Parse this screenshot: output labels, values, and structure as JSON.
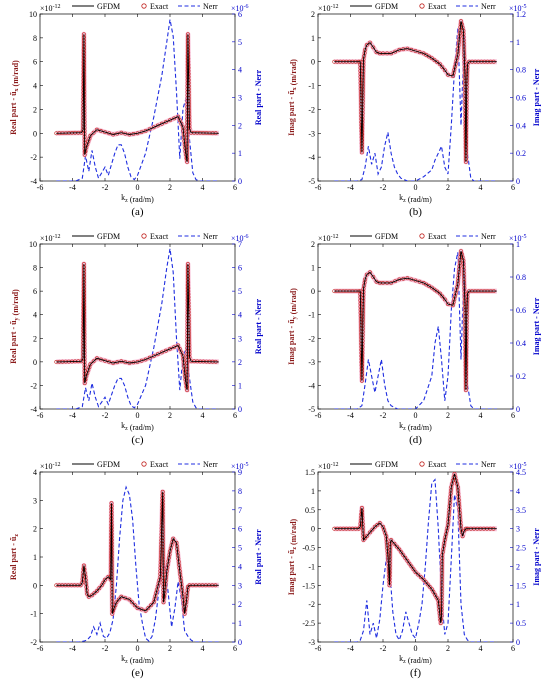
{
  "legend": {
    "gfdm": "GFDM",
    "exact": "Exact",
    "nerr": "Nerr"
  },
  "chart_data": [
    {
      "type": "line",
      "caption": "(a)",
      "xlabel": "k_z (rad/m)",
      "ylabel": "Real part - ũ_x (m/rad)",
      "y2label": "Real part - Nerr",
      "xlim": [
        -6,
        6
      ],
      "ylim": [
        -4,
        10
      ],
      "y2lim": [
        0,
        6
      ],
      "y_exponent": "×10^-12",
      "y2_exponent": "×10^-6",
      "x_ticks": [
        "-6",
        "-4",
        "-2",
        "0",
        "2",
        "4",
        "6"
      ],
      "y_ticks": [
        "-4",
        "-2",
        "0",
        "2",
        "4",
        "6",
        "8",
        "10"
      ],
      "y2_ticks": [
        "0",
        "1",
        "2",
        "3",
        "4",
        "5",
        "6"
      ],
      "field": {
        "x": [
          -5,
          -3.45,
          -3.35,
          -3.3,
          -3.25,
          -3.15,
          -2.9,
          -2.5,
          -2,
          -1.5,
          -1,
          -0.5,
          0,
          0.5,
          1,
          1.5,
          2,
          2.5,
          2.8,
          2.95,
          3.05,
          3.1,
          3.2,
          3.3,
          5
        ],
        "y": [
          0,
          0.05,
          0.3,
          8.3,
          -1.8,
          -1.2,
          -0.2,
          0.3,
          0.1,
          -0.1,
          0.05,
          -0.1,
          0,
          0.2,
          0.5,
          0.8,
          1.1,
          1.4,
          0.5,
          -1.5,
          -2.4,
          8.3,
          0.4,
          0.05,
          0
        ]
      },
      "nerr": {
        "x": [
          -5,
          -3.8,
          -3.4,
          -3.2,
          -3,
          -2.8,
          -2.6,
          -2.4,
          -2.2,
          -2,
          -1.8,
          -1.6,
          -1.4,
          -1.2,
          -1,
          -0.8,
          -0.6,
          -0.4,
          -0.2,
          0,
          0.5,
          1,
          1.5,
          1.8,
          2,
          2.2,
          2.4,
          2.6,
          2.8,
          3,
          3.2,
          3.4,
          3.6,
          3.8,
          4,
          5
        ],
        "y": [
          0,
          0,
          0.1,
          0.9,
          0.35,
          1.1,
          0.5,
          0.1,
          0.3,
          0.5,
          0.2,
          0.6,
          1.0,
          1.3,
          1.3,
          1.0,
          0.5,
          0.15,
          0.05,
          0.2,
          1.0,
          2.3,
          3.8,
          5.0,
          5.8,
          5.2,
          3.2,
          0.8,
          2.6,
          3.0,
          1.5,
          0.3,
          0.05,
          0,
          0,
          0
        ]
      }
    },
    {
      "type": "line",
      "caption": "(b)",
      "xlabel": "k_z (rad/m)",
      "ylabel": "Imag part - ũ_x (m/rad)",
      "y2label": "Imag part - Nerr",
      "xlim": [
        -6,
        6
      ],
      "ylim": [
        -5,
        2
      ],
      "y2lim": [
        0,
        1.2
      ],
      "y_exponent": "×10^-12",
      "y2_exponent": "×10^-5",
      "x_ticks": [
        "-6",
        "-4",
        "-2",
        "0",
        "2",
        "4",
        "6"
      ],
      "y_ticks": [
        "-5",
        "-4",
        "-3",
        "-2",
        "-1",
        "0",
        "1",
        "2"
      ],
      "y2_ticks": [
        "0",
        "0.2",
        "0.4",
        "0.6",
        "0.8",
        "1",
        "1.2"
      ],
      "field": {
        "x": [
          -5,
          -3.5,
          -3.4,
          -3.3,
          -3.2,
          -3.1,
          -3,
          -2.8,
          -2.6,
          -2.4,
          -2.2,
          -2,
          -1.5,
          -1,
          -0.5,
          0,
          0.5,
          1,
          1.5,
          1.8,
          2,
          2.3,
          2.6,
          2.8,
          2.95,
          3.05,
          3.1,
          3.15,
          3.2,
          3.3,
          5
        ],
        "y": [
          0,
          0,
          0,
          -3.8,
          0.1,
          0.5,
          0.7,
          0.8,
          0.6,
          0.4,
          0.35,
          0.35,
          0.35,
          0.5,
          0.55,
          0.45,
          0.35,
          0.15,
          -0.1,
          -0.35,
          -0.55,
          -0.6,
          0.3,
          1.7,
          1.3,
          -0.8,
          -4.2,
          -1.2,
          -0.1,
          0,
          0
        ]
      },
      "nerr": {
        "x": [
          -5,
          -3.6,
          -3.3,
          -3.1,
          -2.9,
          -2.7,
          -2.5,
          -2.3,
          -2.1,
          -1.9,
          -1.7,
          -1.5,
          -1.3,
          -1.1,
          -0.9,
          -0.7,
          -0.5,
          0,
          0.5,
          1,
          1.2,
          1.4,
          1.6,
          1.8,
          2,
          2.2,
          2.4,
          2.6,
          2.8,
          3,
          3.2,
          3.4,
          3.6,
          5
        ],
        "y": [
          0,
          0,
          0.01,
          0.1,
          0.25,
          0.12,
          0.2,
          0.05,
          0.1,
          0.25,
          0.35,
          0.2,
          0.1,
          0.05,
          0.02,
          0.01,
          0,
          0,
          0.03,
          0.08,
          0.15,
          0.2,
          0.25,
          0.1,
          0.05,
          0.4,
          0.8,
          1.1,
          0.4,
          1.05,
          0.2,
          0.02,
          0,
          0
        ]
      }
    },
    {
      "type": "line",
      "caption": "(c)",
      "xlabel": "k_z (rad/m)",
      "ylabel": "Real part - ũ_y (m/rad)",
      "y2label": "Real part - Nerr",
      "xlim": [
        -6,
        6
      ],
      "ylim": [
        -4,
        10
      ],
      "y2lim": [
        0,
        7
      ],
      "y_exponent": "×10^-12",
      "y2_exponent": "×10^-6",
      "x_ticks": [
        "-6",
        "-4",
        "-2",
        "0",
        "2",
        "4",
        "6"
      ],
      "y_ticks": [
        "-4",
        "-2",
        "0",
        "2",
        "4",
        "6",
        "8",
        "10"
      ],
      "y2_ticks": [
        "0",
        "1",
        "2",
        "3",
        "4",
        "5",
        "6",
        "7"
      ],
      "field": {
        "x": [
          -5,
          -3.45,
          -3.35,
          -3.3,
          -3.25,
          -3.15,
          -2.9,
          -2.5,
          -2,
          -1.5,
          -1,
          -0.5,
          0,
          0.5,
          1,
          1.5,
          2,
          2.5,
          2.8,
          2.95,
          3.05,
          3.1,
          3.2,
          3.3,
          5
        ],
        "y": [
          0,
          0.05,
          0.3,
          8.3,
          -1.8,
          -1.2,
          -0.2,
          0.3,
          0.1,
          -0.1,
          0.05,
          -0.1,
          0,
          0.2,
          0.5,
          0.8,
          1.1,
          1.4,
          0.5,
          -1.5,
          -2.4,
          8.3,
          0.4,
          0.05,
          0
        ]
      },
      "nerr": {
        "x": [
          -5,
          -3.8,
          -3.4,
          -3.2,
          -3,
          -2.8,
          -2.6,
          -2.4,
          -2.2,
          -2,
          -1.8,
          -1.6,
          -1.4,
          -1.2,
          -1,
          -0.8,
          -0.6,
          -0.4,
          -0.2,
          0,
          0.5,
          1,
          1.5,
          1.8,
          2,
          2.2,
          2.4,
          2.6,
          2.8,
          3,
          3.2,
          3.4,
          3.6,
          3.8,
          4,
          5
        ],
        "y": [
          0,
          0,
          0.1,
          0.9,
          0.35,
          1.1,
          0.5,
          0.1,
          0.3,
          0.5,
          0.2,
          0.6,
          1.0,
          1.3,
          1.3,
          1.0,
          0.5,
          0.15,
          0.05,
          0.2,
          1.0,
          2.6,
          4.5,
          6.0,
          6.8,
          5.8,
          3.0,
          0.8,
          2.2,
          2.6,
          1.3,
          0.3,
          0.05,
          0,
          0,
          0
        ]
      }
    },
    {
      "type": "line",
      "caption": "(d)",
      "xlabel": "k_z (rad/m)",
      "ylabel": "Imag part - ũ_y (m/rad)",
      "y2label": "Imag part - Nerr",
      "xlim": [
        -6,
        6
      ],
      "ylim": [
        -5,
        2
      ],
      "y2lim": [
        0,
        1
      ],
      "y_exponent": "×10^-12",
      "y2_exponent": "×10^-5",
      "x_ticks": [
        "-6",
        "-4",
        "-2",
        "0",
        "2",
        "4",
        "6"
      ],
      "y_ticks": [
        "-5",
        "-4",
        "-3",
        "-2",
        "-1",
        "0",
        "1",
        "2"
      ],
      "y2_ticks": [
        "0",
        "0.2",
        "0.4",
        "0.6",
        "0.8",
        "1"
      ],
      "field": {
        "x": [
          -5,
          -3.5,
          -3.4,
          -3.3,
          -3.2,
          -3.1,
          -3,
          -2.8,
          -2.6,
          -2.4,
          -2.2,
          -2,
          -1.5,
          -1,
          -0.5,
          0,
          0.5,
          1,
          1.5,
          1.8,
          2,
          2.3,
          2.6,
          2.8,
          2.95,
          3.05,
          3.1,
          3.15,
          3.2,
          3.3,
          5
        ],
        "y": [
          0,
          0,
          0,
          -3.8,
          0.1,
          0.5,
          0.7,
          0.8,
          0.6,
          0.4,
          0.35,
          0.35,
          0.35,
          0.5,
          0.55,
          0.45,
          0.35,
          0.15,
          -0.1,
          -0.35,
          -0.55,
          -0.6,
          0.3,
          1.7,
          1.3,
          -0.8,
          -4.2,
          -1.2,
          -0.1,
          0,
          0
        ]
      },
      "nerr": {
        "x": [
          -5,
          -3.6,
          -3.3,
          -3.1,
          -2.9,
          -2.7,
          -2.5,
          -2.3,
          -2.1,
          -1.9,
          -1.7,
          -1.5,
          -1.3,
          -1.1,
          -0.9,
          -0.7,
          -0.5,
          0,
          0.5,
          1,
          1.2,
          1.4,
          1.6,
          1.8,
          2,
          2.2,
          2.4,
          2.6,
          2.8,
          3,
          3.2,
          3.4,
          3.6,
          5
        ],
        "y": [
          0,
          0,
          0.02,
          0.15,
          0.3,
          0.2,
          0.1,
          0.2,
          0.3,
          0.15,
          0.05,
          0.02,
          0.01,
          0,
          0,
          0,
          0,
          0,
          0.05,
          0.2,
          0.4,
          0.5,
          0.3,
          0.05,
          0.2,
          0.6,
          0.85,
          0.95,
          0.3,
          0.9,
          0.15,
          0.02,
          0,
          0
        ]
      }
    },
    {
      "type": "line",
      "caption": "(e)",
      "xlabel": "k_z (rad/m)",
      "ylabel": "Real part - ũ_z",
      "y2label": "Real part - Nerr",
      "xlim": [
        -6,
        6
      ],
      "ylim": [
        -2,
        4
      ],
      "y2lim": [
        0,
        9
      ],
      "y_exponent": "×10^-12",
      "y2_exponent": "×10^-5",
      "x_ticks": [
        "-6",
        "-4",
        "-2",
        "0",
        "2",
        "4",
        "6"
      ],
      "y_ticks": [
        "-2",
        "-1",
        "0",
        "1",
        "2",
        "3",
        "4"
      ],
      "y2_ticks": [
        "0",
        "1",
        "2",
        "3",
        "4",
        "5",
        "6",
        "7",
        "8",
        "9"
      ],
      "field": {
        "x": [
          -5,
          -3.5,
          -3.4,
          -3.3,
          -3.2,
          -3.1,
          -3,
          -2.8,
          -2.5,
          -2.2,
          -2,
          -1.8,
          -1.65,
          -1.6,
          -1.55,
          -1.5,
          -1.3,
          -1,
          -0.5,
          0,
          0.5,
          1,
          1.4,
          1.55,
          1.6,
          1.65,
          1.8,
          2,
          2.2,
          2.4,
          2.6,
          2.8,
          2.9,
          3,
          3.1,
          3.2,
          5
        ],
        "y": [
          0,
          0,
          0.1,
          0.7,
          0.3,
          -0.3,
          -0.4,
          -0.35,
          -0.2,
          0,
          0.2,
          0.3,
          0.2,
          2.9,
          -1.0,
          -0.9,
          -0.6,
          -0.4,
          -0.5,
          -0.8,
          -0.9,
          -0.6,
          0.3,
          3.3,
          -0.6,
          -0.4,
          0.5,
          1.2,
          1.65,
          1.5,
          0.5,
          -0.4,
          -1.0,
          -0.6,
          -0.05,
          0,
          0
        ]
      },
      "nerr": {
        "x": [
          -5,
          -3.6,
          -3.3,
          -3.1,
          -2.9,
          -2.7,
          -2.5,
          -2.3,
          -2.1,
          -1.9,
          -1.7,
          -1.5,
          -1.3,
          -1.1,
          -0.9,
          -0.7,
          -0.5,
          -0.3,
          -0.1,
          0.1,
          0.3,
          0.5,
          0.7,
          0.9,
          1.1,
          1.3,
          1.5,
          1.7,
          1.9,
          2.1,
          2.3,
          2.5,
          2.7,
          2.9,
          3.1,
          3.3,
          3.5,
          5
        ],
        "y": [
          0,
          0,
          0.05,
          0.1,
          0.3,
          0.8,
          0.4,
          1.0,
          0.3,
          0.2,
          0.5,
          1.2,
          3.0,
          5.5,
          7.5,
          8.2,
          7.8,
          6.5,
          4.0,
          2.0,
          1.0,
          0.2,
          0.05,
          0.3,
          1.2,
          2.6,
          3.8,
          4.0,
          2.5,
          0.8,
          1.8,
          3.2,
          2.2,
          0.6,
          0.3,
          0.1,
          0,
          0
        ]
      }
    },
    {
      "type": "line",
      "caption": "(f)",
      "xlabel": "k_z (rad/m)",
      "ylabel": "Imag part - ũ_z (m/rad)",
      "y2label": "Imag part - Nerr",
      "xlim": [
        -6,
        6
      ],
      "ylim": [
        -3,
        1.5
      ],
      "y2lim": [
        0,
        4.5
      ],
      "y_exponent": "×10^-12",
      "y2_exponent": "×10^-5",
      "x_ticks": [
        "-6",
        "-4",
        "-2",
        "0",
        "2",
        "4",
        "6"
      ],
      "y_ticks": [
        "-3",
        "-2.5",
        "-2",
        "-1.5",
        "-1",
        "-0.5",
        "0",
        "0.5",
        "1",
        "1.5"
      ],
      "y2_ticks": [
        "0",
        "0.5",
        "1",
        "1.5",
        "2",
        "2.5",
        "3",
        "3.5",
        "4",
        "4.5"
      ],
      "field": {
        "x": [
          -5,
          -3.5,
          -3.4,
          -3.3,
          -3.2,
          -3.1,
          -3,
          -2.8,
          -2.5,
          -2.2,
          -2,
          -1.8,
          -1.65,
          -1.6,
          -1.55,
          -1.5,
          -1.3,
          -1,
          -0.5,
          0,
          0.5,
          1,
          1.4,
          1.55,
          1.6,
          1.65,
          1.8,
          2,
          2.2,
          2.4,
          2.6,
          2.8,
          2.9,
          3,
          3.1,
          3.2,
          5
        ],
        "y": [
          0,
          0,
          0.05,
          0.55,
          -0.3,
          -0.25,
          -0.2,
          -0.1,
          0.05,
          0.15,
          0.05,
          -0.2,
          -1.0,
          -1.5,
          -0.4,
          -0.3,
          -0.4,
          -0.55,
          -0.85,
          -1.15,
          -1.35,
          -1.6,
          -1.9,
          -2.5,
          -2.3,
          -0.7,
          -0.3,
          0.1,
          1.1,
          1.45,
          1.1,
          0,
          -0.2,
          -0.05,
          0,
          0,
          0
        ]
      },
      "nerr": {
        "x": [
          -5,
          -3.6,
          -3.4,
          -3.2,
          -3,
          -2.8,
          -2.6,
          -2.4,
          -2.2,
          -2,
          -1.8,
          -1.6,
          -1.4,
          -1.2,
          -1,
          -0.8,
          -0.6,
          -0.4,
          -0.2,
          0,
          0.2,
          0.4,
          0.6,
          0.8,
          1,
          1.2,
          1.4,
          1.6,
          1.8,
          2,
          2.2,
          2.4,
          2.6,
          2.8,
          3,
          3.2,
          3.4,
          5
        ],
        "y": [
          0,
          0,
          0.05,
          0.3,
          1.1,
          0.2,
          0.5,
          0.1,
          0.6,
          1.5,
          2.2,
          2.0,
          0.8,
          0.2,
          0.05,
          0.3,
          0.8,
          0.5,
          0.2,
          0.1,
          0.5,
          1.0,
          2.0,
          3.2,
          4.2,
          4.3,
          3.0,
          1.2,
          0.2,
          0.5,
          2.2,
          3.9,
          3.5,
          1.0,
          0.2,
          0.05,
          0,
          0
        ]
      }
    }
  ]
}
